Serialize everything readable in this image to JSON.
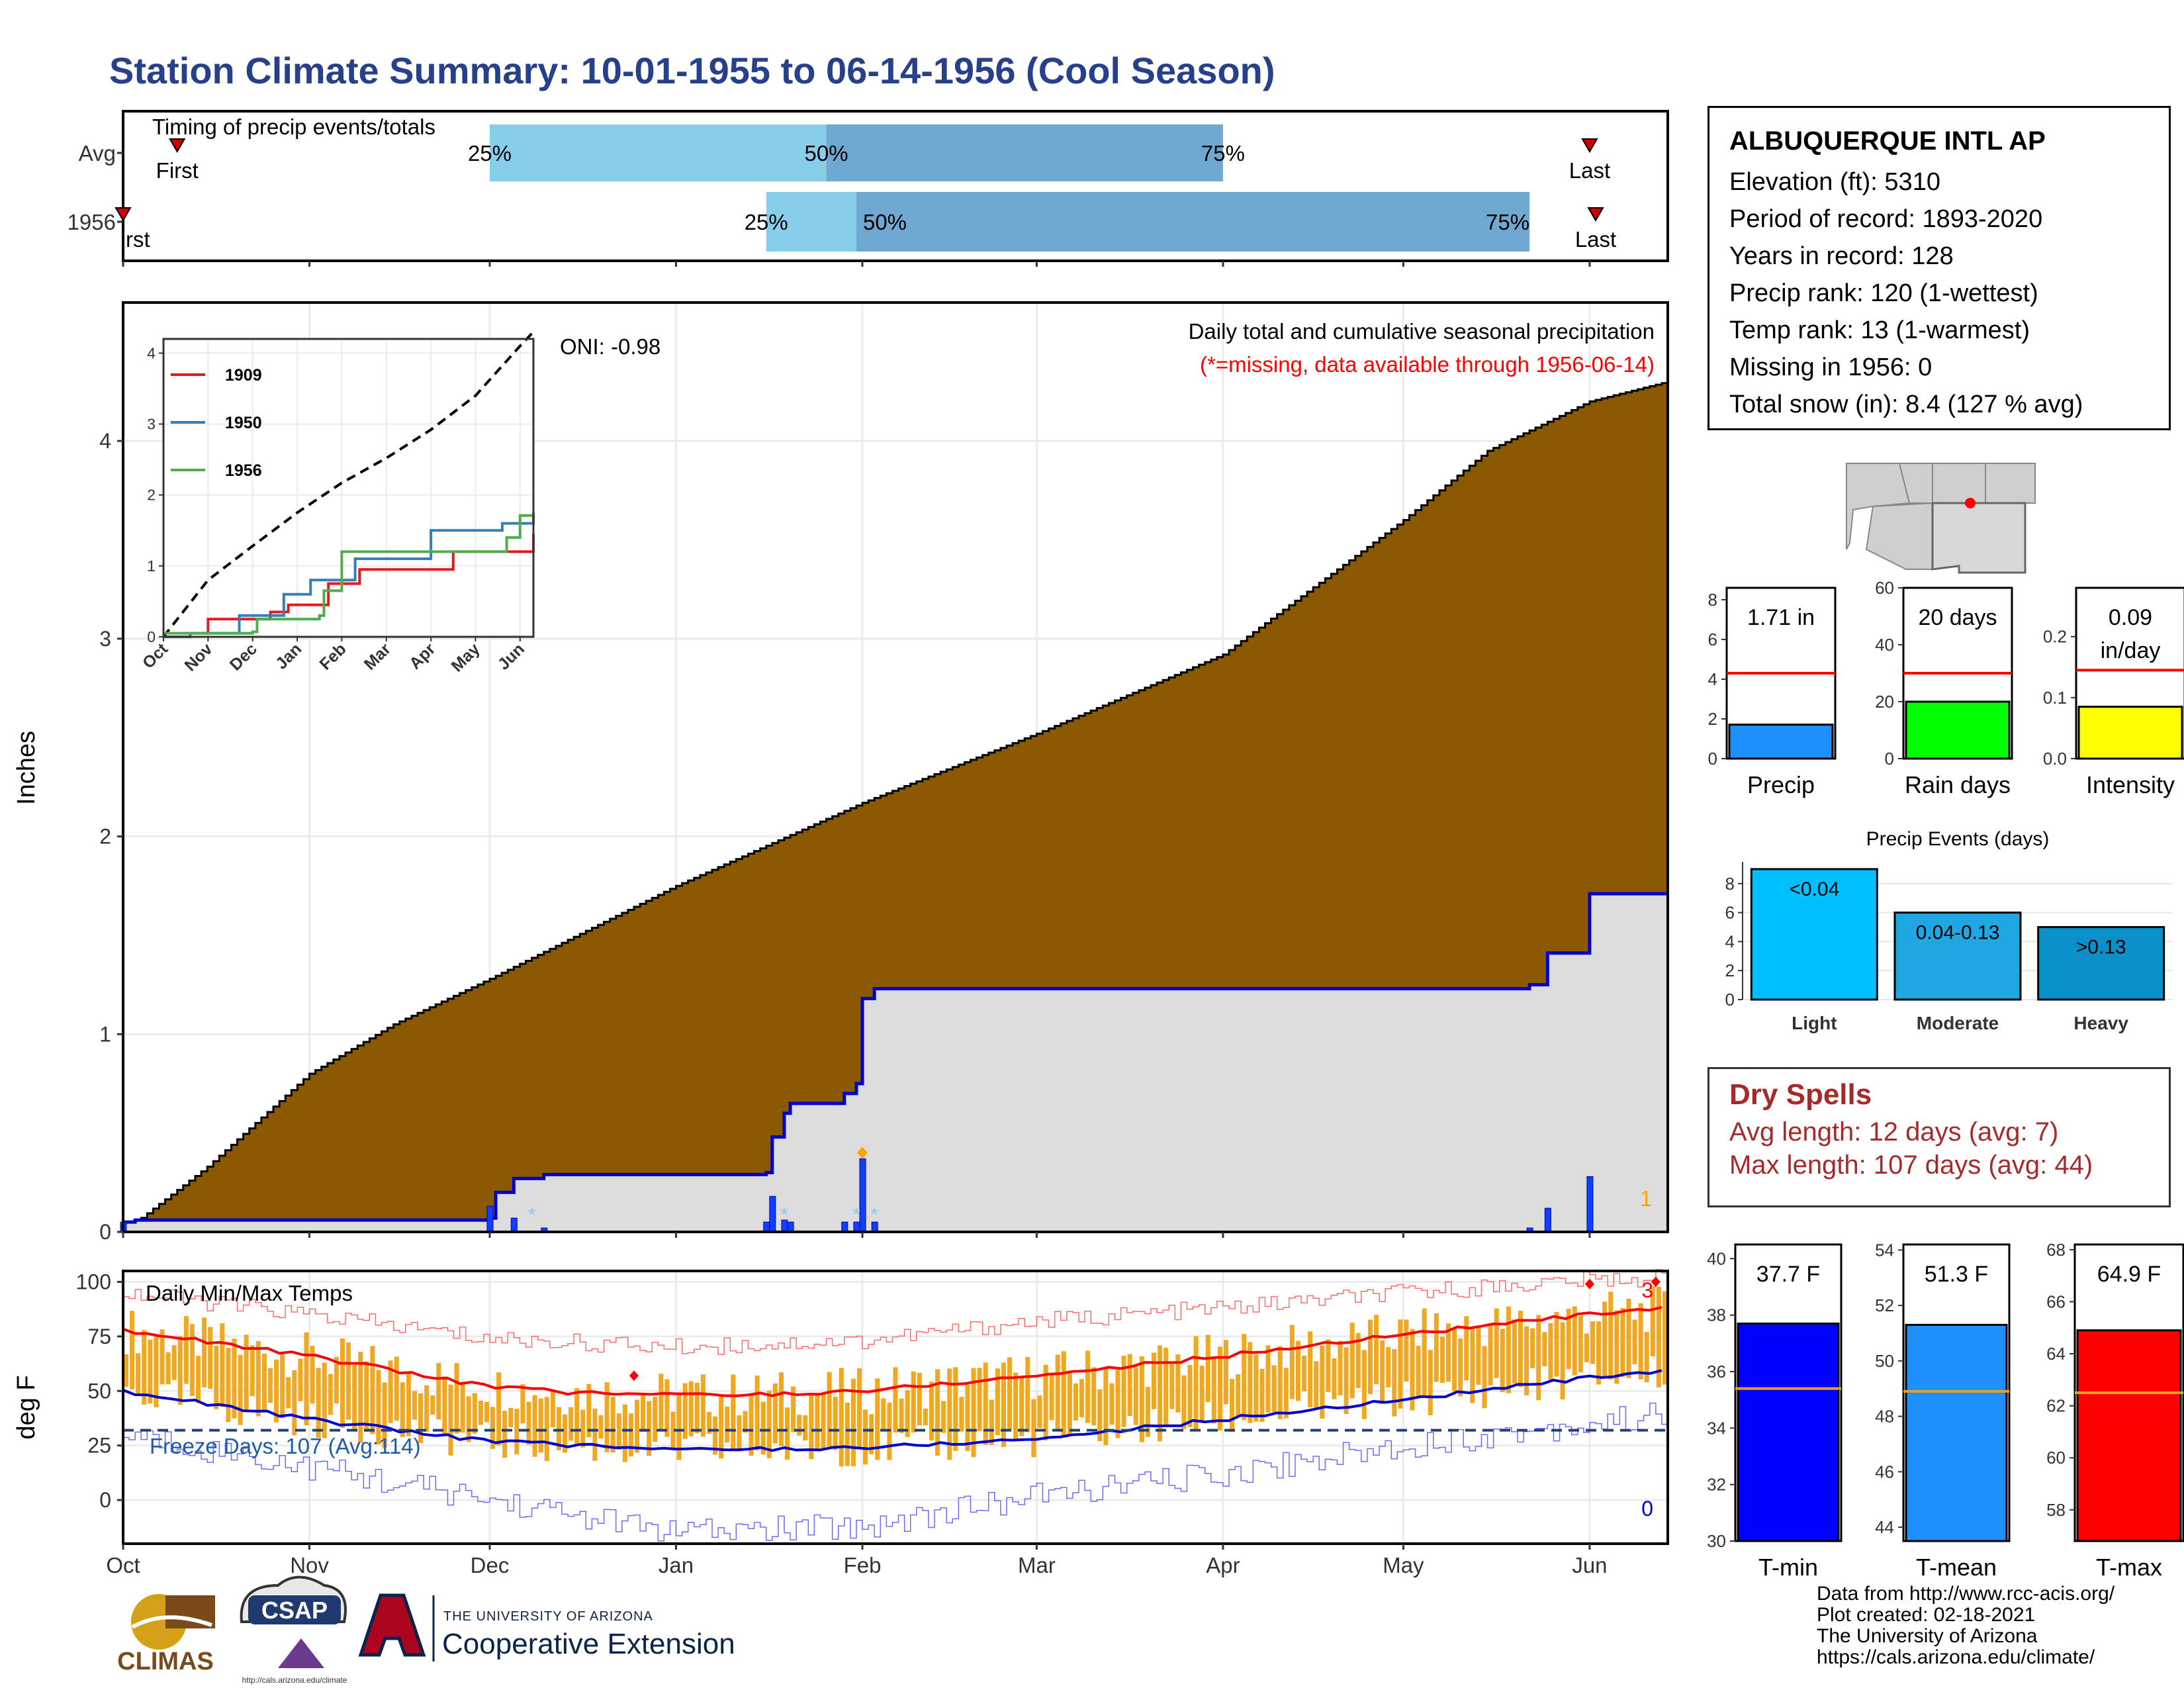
{
  "title": "Station Climate Summary: 10-01-1955 to 06-14-1956 (Cool Season)",
  "station": {
    "name": "ALBUQUERQUE INTL AP",
    "lines": [
      "Elevation (ft): 5310",
      "Period of record: 1893-2020",
      "Years in record: 128",
      "Precip rank: 120 (1-wettest)",
      "Temp rank: 13 (1-warmest)",
      "Missing in 1956: 0",
      "Total snow (in): 8.4 (127 % avg)"
    ]
  },
  "dry_spells": {
    "title": "Dry Spells",
    "avg_length": "Avg length: 12 days (avg: 7)",
    "max_length": "Max length: 107 days (avg: 44)"
  },
  "credits": [
    "Data from http://www.rcc-acis.org/",
    "Plot created: 02-18-2021",
    "The University of Arizona",
    "https://cals.arizona.edu/climate/"
  ],
  "logos": {
    "climas": "CLIMAS",
    "csap": "CSAP",
    "csap_url": "http://cals.arizona.edu/climate",
    "ua_small": "THE UNIVERSITY OF ARIZONA",
    "ua_big": "Cooperative Extension"
  },
  "colors": {
    "title": "#27408b",
    "avg_cumulative": "#8b5a00",
    "observed_fill": "#dcdcdc",
    "observed_line": "#0000cd",
    "q_light": "#87ceeb",
    "q_dark": "#6fa8d0",
    "temp_bar": "#f0a820",
    "tmax": "#ff0000",
    "tmin": "#0000cd"
  },
  "chart_data": [
    {
      "id": "timing",
      "type": "bar",
      "title": "Timing of precip events/totals",
      "rows": [
        {
          "label": "Avg",
          "q25": "1955-12-01",
          "q50": "1956-01-26",
          "q75": "1956-04-01",
          "first": "1955-10-10",
          "last": "1956-06-01"
        },
        {
          "label": "1956",
          "q25": "1956-01-16",
          "q50": "1956-01-31",
          "q75": "1956-05-22",
          "first": "1955-10-01",
          "last": "1956-06-02"
        }
      ],
      "quantile_labels": [
        "25%",
        "50%",
        "75%"
      ],
      "first_label": "First",
      "first_label_clipped": "rst",
      "last_label": "Last"
    },
    {
      "id": "precip-main",
      "type": "area",
      "ylabel": "Inches",
      "ylim": [
        0,
        4.7
      ],
      "yticks": [
        0,
        1,
        2,
        3,
        4
      ],
      "xticks": [
        "Oct",
        "Nov",
        "Dec",
        "Jan",
        "Feb",
        "Mar",
        "Apr",
        "May",
        "Jun"
      ],
      "annotation_title": "Daily total and cumulative seasonal precipitation",
      "annotation_missing": "(*=missing, data available through 1956-06-14)",
      "oni": "ONI: -0.98",
      "count_label": "1",
      "avg_cumulative_points": [
        [
          "1955-10-01",
          0.0
        ],
        [
          "1955-10-15",
          0.33
        ],
        [
          "1955-11-01",
          0.8
        ],
        [
          "1955-11-15",
          1.05
        ],
        [
          "1955-12-01",
          1.28
        ],
        [
          "1956-01-01",
          1.75
        ],
        [
          "1956-02-01",
          2.17
        ],
        [
          "1956-03-01",
          2.52
        ],
        [
          "1956-04-01",
          2.92
        ],
        [
          "1956-05-01",
          3.6
        ],
        [
          "1956-05-15",
          3.95
        ],
        [
          "1956-06-01",
          4.2
        ],
        [
          "1956-06-14",
          4.3
        ]
      ],
      "observed_cumulative": [
        [
          "1955-10-01",
          0.05
        ],
        [
          "1955-10-03",
          0.06
        ],
        [
          "1955-12-01",
          0.07
        ],
        [
          "1955-12-02",
          0.2
        ],
        [
          "1955-12-05",
          0.27
        ],
        [
          "1955-12-10",
          0.29
        ],
        [
          "1956-01-16",
          0.3
        ],
        [
          "1956-01-17",
          0.48
        ],
        [
          "1956-01-19",
          0.6
        ],
        [
          "1956-01-20",
          0.65
        ],
        [
          "1956-01-29",
          0.7
        ],
        [
          "1956-01-31",
          0.75
        ],
        [
          "1956-02-01",
          1.18
        ],
        [
          "1956-02-03",
          1.23
        ],
        [
          "1956-05-22",
          1.25
        ],
        [
          "1956-05-25",
          1.41
        ],
        [
          "1956-06-01",
          1.71
        ],
        [
          "1956-06-14",
          1.71
        ]
      ],
      "daily_bars": [
        [
          "1955-10-01",
          0.05
        ],
        [
          "1955-12-01",
          0.13
        ],
        [
          "1955-12-05",
          0.07
        ],
        [
          "1955-12-10",
          0.02
        ],
        [
          "1956-01-16",
          0.05
        ],
        [
          "1956-01-17",
          0.18
        ],
        [
          "1956-01-19",
          0.06
        ],
        [
          "1956-01-20",
          0.05
        ],
        [
          "1956-01-29",
          0.05
        ],
        [
          "1956-01-31",
          0.05
        ],
        [
          "1956-02-01",
          0.37
        ],
        [
          "1956-02-03",
          0.05
        ],
        [
          "1956-05-22",
          0.02
        ],
        [
          "1956-05-25",
          0.12
        ],
        [
          "1956-06-01",
          0.28
        ]
      ],
      "snow_marks": [
        "1955-12-08",
        "1956-01-19",
        "1956-01-31",
        "1956-02-03"
      ]
    },
    {
      "id": "inset",
      "type": "line",
      "ylim": [
        0,
        4.2
      ],
      "yticks": [
        0,
        1,
        2,
        3,
        4
      ],
      "xticks": [
        "Oct",
        "Nov",
        "Dec",
        "Jan",
        "Feb",
        "Mar",
        "Apr",
        "May",
        "Jun"
      ],
      "series": [
        {
          "name": "1909",
          "color": "#e41a1c",
          "points": [
            [
              0,
              0.0
            ],
            [
              0.6,
              0.05
            ],
            [
              1.0,
              0.25
            ],
            [
              2.4,
              0.35
            ],
            [
              2.8,
              0.45
            ],
            [
              3.7,
              0.75
            ],
            [
              4.4,
              0.95
            ],
            [
              6.5,
              1.2
            ],
            [
              8.3,
              1.45
            ]
          ]
        },
        {
          "name": "1950",
          "color": "#377eb8",
          "points": [
            [
              0,
              0.0
            ],
            [
              0.6,
              0.05
            ],
            [
              1.7,
              0.3
            ],
            [
              2.7,
              0.6
            ],
            [
              3.3,
              0.8
            ],
            [
              4.3,
              1.1
            ],
            [
              6.0,
              1.5
            ],
            [
              7.6,
              1.6
            ],
            [
              8.3,
              1.75
            ]
          ]
        },
        {
          "name": "1956",
          "color": "#4daf4a",
          "points": [
            [
              0,
              0.05
            ],
            [
              2.0,
              0.07
            ],
            [
              2.1,
              0.25
            ],
            [
              3.5,
              0.3
            ],
            [
              3.6,
              0.65
            ],
            [
              4.0,
              1.2
            ],
            [
              7.7,
              1.4
            ],
            [
              8.0,
              1.71
            ],
            [
              8.3,
              1.71
            ]
          ]
        }
      ],
      "avg_points": [
        [
          0,
          0.0
        ],
        [
          1.0,
          0.8
        ],
        [
          2.0,
          1.28
        ],
        [
          3.0,
          1.75
        ],
        [
          4.0,
          2.17
        ],
        [
          5.0,
          2.52
        ],
        [
          6.0,
          2.92
        ],
        [
          7.0,
          3.4
        ],
        [
          8.0,
          4.1
        ],
        [
          8.3,
          4.3
        ]
      ]
    },
    {
      "id": "bars-precip",
      "type": "bar",
      "categories": [
        "Precip"
      ],
      "values": [
        1.71
      ],
      "avg": 4.3,
      "ylim": [
        0,
        8.6
      ],
      "yticks": [
        0,
        2,
        4,
        6,
        8
      ],
      "label": "1.71 in",
      "color": "#1e90ff"
    },
    {
      "id": "bars-raindays",
      "type": "bar",
      "categories": [
        "Rain days"
      ],
      "values": [
        20
      ],
      "avg": 30,
      "ylim": [
        0,
        60
      ],
      "yticks": [
        0,
        20,
        40,
        60
      ],
      "label": "20 days",
      "color": "#00ff00"
    },
    {
      "id": "bars-intensity",
      "type": "bar",
      "categories": [
        "Intensity"
      ],
      "values": [
        0.085
      ],
      "avg": 0.145,
      "ylim": [
        0,
        0.28
      ],
      "yticks": [
        0.0,
        0.1,
        0.2
      ],
      "label": "0.09",
      "label2": "in/day",
      "color": "#ffff00"
    },
    {
      "id": "events",
      "type": "bar",
      "title": "Precip Events (days)",
      "categories": [
        "Light",
        "Moderate",
        "Heavy"
      ],
      "values": [
        9,
        6,
        5
      ],
      "bar_labels": [
        "<0.04",
        "0.04-0.13",
        ">0.13"
      ],
      "colors": [
        "#00bfff",
        "#1ea7e1",
        "#0a90c8"
      ],
      "ylim": [
        0,
        9.5
      ],
      "yticks": [
        0,
        2,
        4,
        6,
        8
      ]
    },
    {
      "id": "temps",
      "type": "line",
      "title": "Daily Min/Max Temps",
      "ylabel": "deg F",
      "ylim": [
        -20,
        105
      ],
      "yticks": [
        0,
        25,
        50,
        75,
        100
      ],
      "xticks": [
        "Oct",
        "Nov",
        "Dec",
        "Jan",
        "Feb",
        "Mar",
        "Apr",
        "May",
        "Jun"
      ],
      "freeze_label": "Freeze Days: 107 (Avg:114)",
      "freeze_line": 32,
      "count_hot": "3",
      "count_cold": "0",
      "avg_tmax_points": [
        [
          0,
          78
        ],
        [
          1,
          66
        ],
        [
          2,
          52
        ],
        [
          2.5,
          49
        ],
        [
          3.3,
          48
        ],
        [
          4,
          50
        ],
        [
          5,
          57
        ],
        [
          6,
          66
        ],
        [
          7,
          76
        ],
        [
          8,
          85
        ],
        [
          8.45,
          88
        ]
      ],
      "avg_tmin_points": [
        [
          0,
          50
        ],
        [
          1,
          37
        ],
        [
          2,
          27
        ],
        [
          3,
          23
        ],
        [
          4,
          24
        ],
        [
          5,
          28
        ],
        [
          6,
          37
        ],
        [
          7,
          46
        ],
        [
          8,
          56
        ],
        [
          8.45,
          59
        ]
      ],
      "record_high_points": [
        [
          0,
          95
        ],
        [
          1,
          85
        ],
        [
          2,
          74
        ],
        [
          3,
          70
        ],
        [
          4,
          73
        ],
        [
          5,
          82
        ],
        [
          6,
          88
        ],
        [
          7,
          95
        ],
        [
          8,
          101
        ],
        [
          8.45,
          102
        ]
      ],
      "record_low_points": [
        [
          0,
          30
        ],
        [
          1,
          15
        ],
        [
          2,
          0
        ],
        [
          3,
          -15
        ],
        [
          4,
          -12
        ],
        [
          5,
          2
        ],
        [
          6,
          12
        ],
        [
          7,
          25
        ],
        [
          8,
          35
        ],
        [
          8.45,
          40
        ]
      ]
    },
    {
      "id": "bars-tmin",
      "type": "bar",
      "categories": [
        "T-min"
      ],
      "values": [
        37.7
      ],
      "avg": 35.4,
      "ylim": [
        30,
        40.5
      ],
      "yticks": [
        30,
        32,
        34,
        36,
        38,
        40
      ],
      "label": "37.7 F",
      "color": "#0000ff"
    },
    {
      "id": "bars-tmean",
      "type": "bar",
      "categories": [
        "T-mean"
      ],
      "values": [
        51.3
      ],
      "avg": 48.9,
      "ylim": [
        43.5,
        54.2
      ],
      "yticks": [
        44,
        46,
        48,
        50,
        52,
        54
      ],
      "label": "51.3 F",
      "color": "#1e90ff"
    },
    {
      "id": "bars-tmax",
      "type": "bar",
      "categories": [
        "T-max"
      ],
      "values": [
        64.9
      ],
      "avg": 62.5,
      "ylim": [
        56.8,
        68.2
      ],
      "yticks": [
        58,
        60,
        62,
        64,
        66,
        68
      ],
      "label": "64.9 F",
      "color": "#ff0000"
    }
  ]
}
